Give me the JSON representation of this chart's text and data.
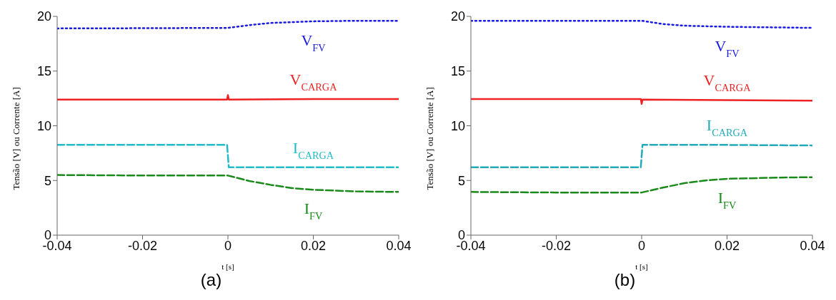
{
  "chart_data": [
    {
      "type": "line",
      "ylabel": "Tensão [V] ou Corrente [A]",
      "xlabel": "t [s]",
      "annotations": [
        "(a)"
      ],
      "xlim": [
        -0.04,
        0.04
      ],
      "xticks": [
        -0.04,
        -0.02,
        0,
        0.02,
        0.04
      ],
      "ylim": [
        0,
        20
      ],
      "yticks": [
        0,
        5,
        10,
        15,
        20
      ],
      "grid": false,
      "legend": false,
      "series": [
        {
          "name": "V$_{FV}$",
          "color": "#1a1ae0",
          "line_style": "dotted",
          "x": [
            -0.04,
            -0.02,
            0,
            0.005,
            0.01,
            0.02,
            0.03,
            0.04
          ],
          "values": [
            18.9,
            18.92,
            18.95,
            19.2,
            19.4,
            19.55,
            19.6,
            19.6
          ]
        },
        {
          "name": "V$_{CARGA}$",
          "color": "#ee2222",
          "line_style": "solid",
          "x": [
            -0.04,
            -0.0002,
            0,
            0.0002,
            0.02,
            0.04
          ],
          "values": [
            12.4,
            12.4,
            12.8,
            12.4,
            12.45,
            12.45
          ]
        },
        {
          "name": "I$_{CARGA}$",
          "color": "#22bbcc",
          "line_style": "dashed",
          "x": [
            -0.04,
            -0.0002,
            0.0002,
            0.02,
            0.04
          ],
          "values": [
            8.25,
            8.25,
            6.2,
            6.2,
            6.2
          ]
        },
        {
          "name": "I$_{FV}$",
          "color": "#1a8a1a",
          "line_style": "dashed",
          "x": [
            -0.04,
            -0.02,
            0,
            0.005,
            0.01,
            0.015,
            0.02,
            0.03,
            0.04
          ],
          "values": [
            5.5,
            5.45,
            5.45,
            4.95,
            4.6,
            4.3,
            4.15,
            4.0,
            3.95
          ]
        }
      ]
    },
    {
      "type": "line",
      "ylabel": "Tensão [V] ou Corrente [A]",
      "xlabel": "t [s]",
      "annotations": [
        "(b)"
      ],
      "xlim": [
        -0.04,
        0.04
      ],
      "xticks": [
        -0.04,
        -0.02,
        0,
        0.02,
        0.04
      ],
      "ylim": [
        0,
        20
      ],
      "yticks": [
        0,
        5,
        10,
        15,
        20
      ],
      "grid": false,
      "legend": false,
      "series": [
        {
          "name": "V$_{FV}$",
          "color": "#1a1ae0",
          "line_style": "dotted",
          "x": [
            -0.04,
            -0.02,
            0,
            0.005,
            0.01,
            0.02,
            0.03,
            0.04
          ],
          "values": [
            19.6,
            19.6,
            19.6,
            19.3,
            19.15,
            19.05,
            19.0,
            18.95
          ]
        },
        {
          "name": "V$_{CARGA}$",
          "color": "#ee2222",
          "line_style": "solid",
          "x": [
            -0.04,
            -0.0002,
            0,
            0.0002,
            0.02,
            0.04
          ],
          "values": [
            12.45,
            12.45,
            12.0,
            12.4,
            12.35,
            12.3
          ]
        },
        {
          "name": "I$_{CARGA}$",
          "color": "#22aabb",
          "line_style": "dashed",
          "x": [
            -0.04,
            -0.0002,
            0.0002,
            0.02,
            0.04
          ],
          "values": [
            6.2,
            6.2,
            8.25,
            8.25,
            8.2
          ]
        },
        {
          "name": "I$_{FV}$",
          "color": "#1a8a1a",
          "line_style": "dashed",
          "x": [
            -0.04,
            -0.02,
            0,
            0.005,
            0.01,
            0.015,
            0.02,
            0.03,
            0.04
          ],
          "values": [
            3.95,
            3.9,
            3.9,
            4.35,
            4.75,
            5.0,
            5.15,
            5.25,
            5.3
          ]
        }
      ]
    }
  ]
}
